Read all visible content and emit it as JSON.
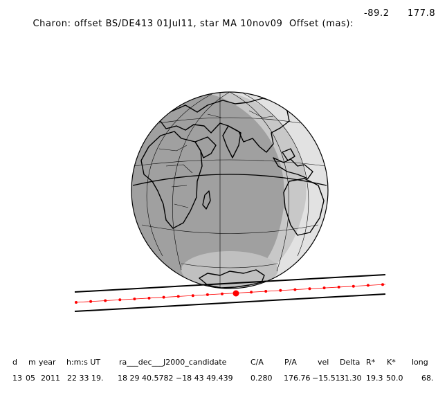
{
  "title": {
    "text": "Charon: offset BS/DE413 01Jul11, star MA 10nov09  Offset (mas):",
    "offset_ra": "-89.2",
    "offset_dec": "177.8"
  },
  "table": {
    "headers": [
      "d",
      "m",
      "year",
      "h:m:s UT",
      "ra___dec___J2000_candidate",
      "C/A",
      "P/A",
      "vel",
      "Delta",
      "R*",
      "K*",
      "long"
    ],
    "values": [
      "13",
      "05",
      "2011",
      "22 33 19.",
      "18 29 40.5782 −18 43  49.439",
      "0.280",
      "176.76",
      "−15.51",
      "31.30",
      "19.3",
      "50.0",
      "68."
    ]
  },
  "colors": {
    "night": "#a0a0a0",
    "twilight": "#c8c8c8",
    "day": "#e2e2e2",
    "track": "#ff0000"
  }
}
